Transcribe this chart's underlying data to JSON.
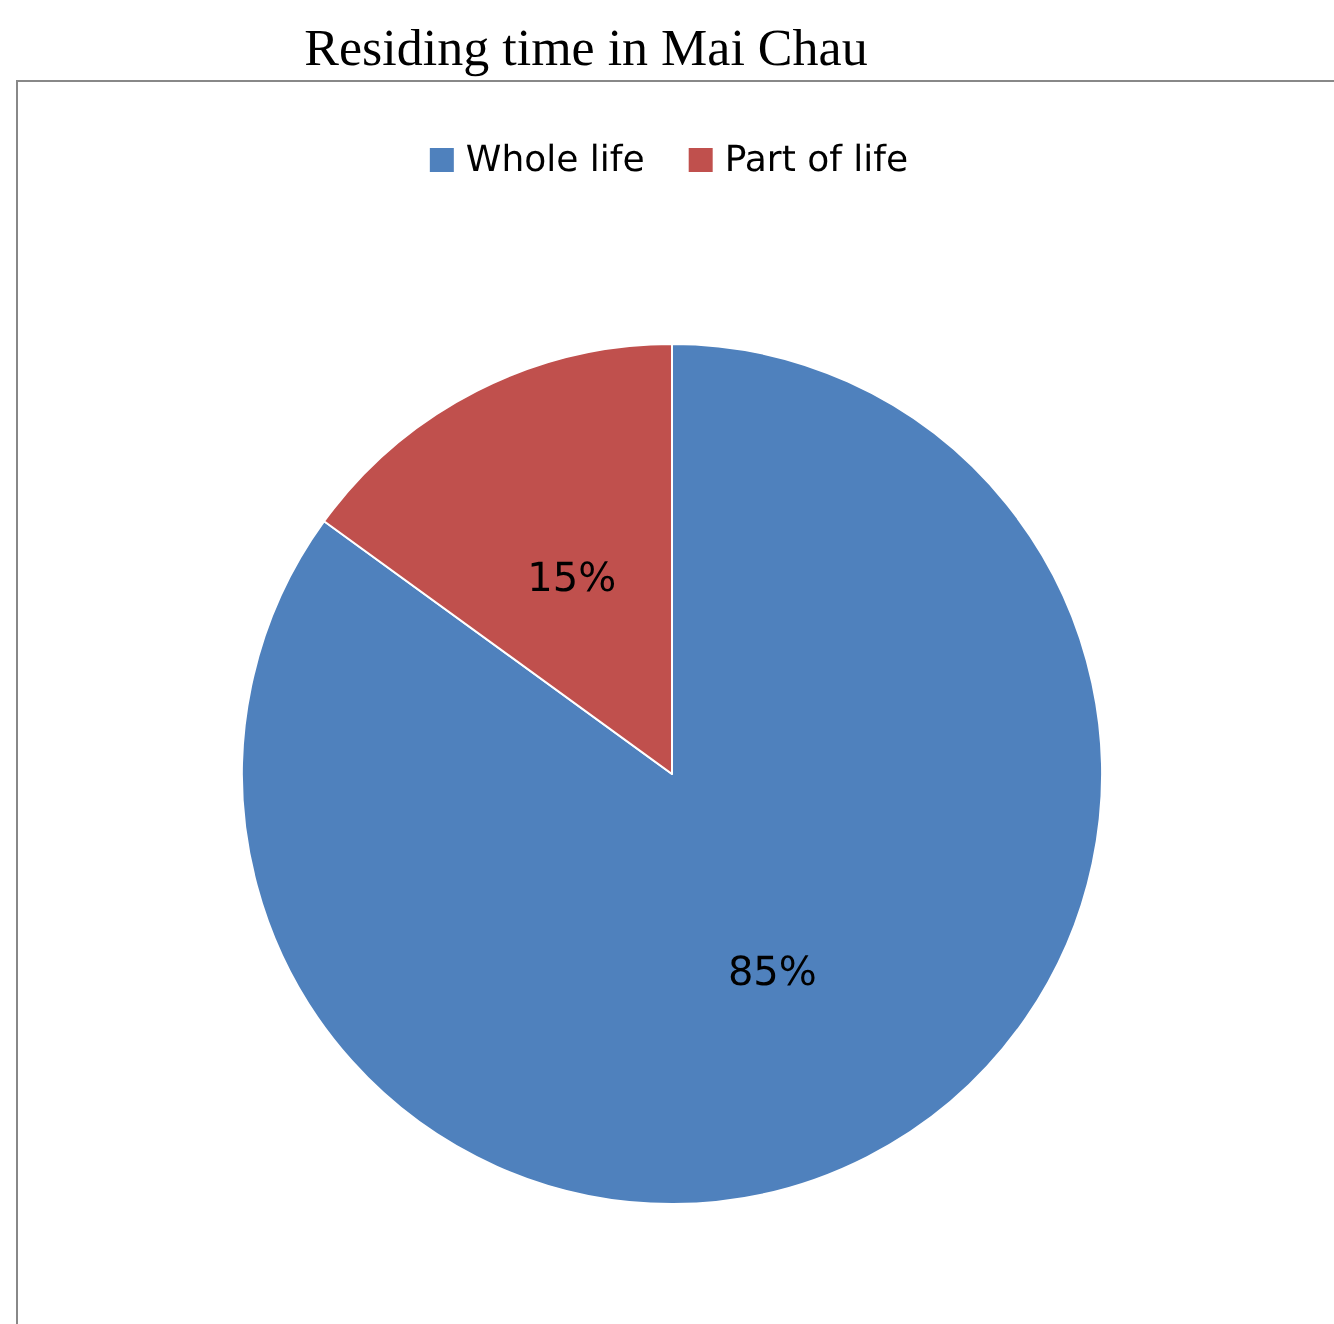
{
  "chart_data": {
    "type": "pie",
    "title": "Residing time in Mai Chau",
    "categories": [
      "Whole life",
      "Part of life"
    ],
    "values": [
      85,
      15
    ],
    "colors": [
      "#4f81bd",
      "#c0504d"
    ],
    "value_labels": [
      "85%",
      "15%"
    ],
    "legend": "top"
  }
}
